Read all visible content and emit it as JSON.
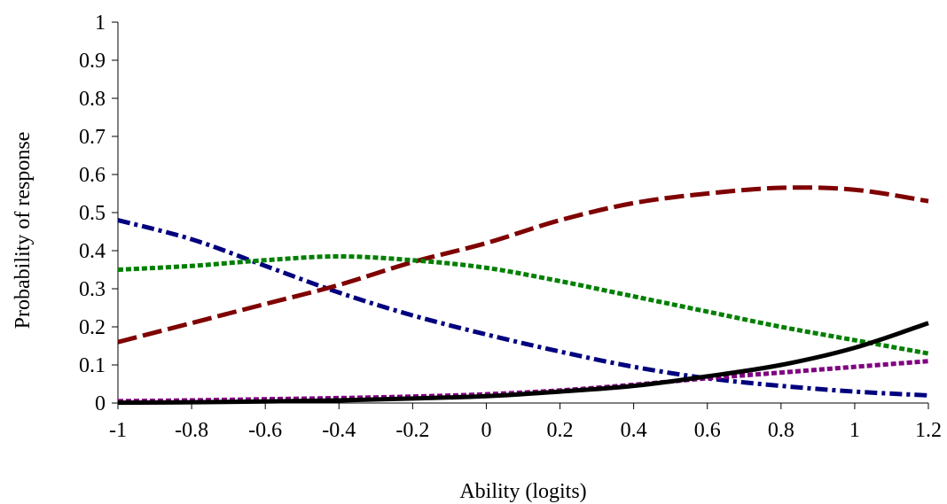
{
  "chart_data": {
    "type": "line",
    "xlabel": "Ability (logits)",
    "ylabel": "Probability of response",
    "xlim": [
      -1,
      1.2
    ],
    "ylim": [
      0,
      1
    ],
    "x_ticks": [
      "-1",
      "-0.8",
      "-0.6",
      "-0.4",
      "-0.2",
      "0",
      "0.2",
      "0.4",
      "0.6",
      "0.8",
      "1",
      "1.2"
    ],
    "y_ticks": [
      "0",
      "0.1",
      "0.2",
      "0.3",
      "0.4",
      "0.5",
      "0.6",
      "0.7",
      "0.8",
      "0.9",
      "1"
    ],
    "grid": false,
    "legend": "none",
    "x": [
      -1,
      -0.8,
      -0.6,
      -0.4,
      -0.2,
      0,
      0.2,
      0.4,
      0.6,
      0.8,
      1,
      1.2
    ],
    "series": [
      {
        "color": "#00007f",
        "line_style": "dash-dot",
        "values": [
          0.48,
          0.43,
          0.36,
          0.29,
          0.23,
          0.18,
          0.135,
          0.095,
          0.065,
          0.045,
          0.03,
          0.02
        ]
      },
      {
        "color": "#7f0000",
        "line_style": "long-dash",
        "values": [
          0.16,
          0.21,
          0.26,
          0.31,
          0.37,
          0.42,
          0.48,
          0.525,
          0.55,
          0.565,
          0.56,
          0.53
        ]
      },
      {
        "color": "#007f00",
        "line_style": "dotted",
        "values": [
          0.35,
          0.36,
          0.375,
          0.385,
          0.375,
          0.355,
          0.32,
          0.28,
          0.24,
          0.2,
          0.165,
          0.13
        ]
      },
      {
        "color": "#7f007f",
        "line_style": "dotted",
        "values": [
          0.005,
          0.007,
          0.01,
          0.013,
          0.017,
          0.023,
          0.033,
          0.048,
          0.065,
          0.08,
          0.095,
          0.11
        ]
      },
      {
        "color": "#000000",
        "line_style": "solid",
        "values": [
          0.001,
          0.002,
          0.004,
          0.007,
          0.012,
          0.018,
          0.03,
          0.045,
          0.07,
          0.1,
          0.145,
          0.21
        ]
      }
    ]
  }
}
